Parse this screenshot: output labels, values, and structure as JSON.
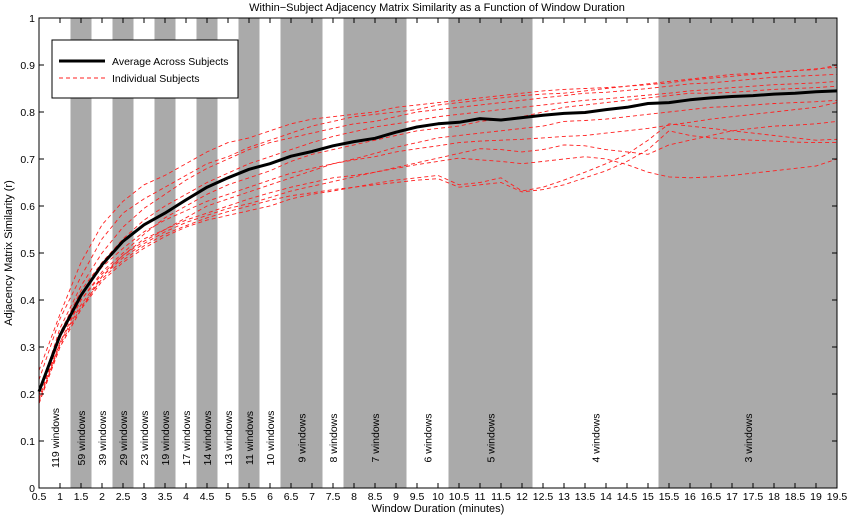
{
  "chart_data": {
    "type": "line",
    "title": "Within−Subject Adjacency Matrix Similarity as a Function of Window Duration",
    "xlabel": "Window Duration (minutes)",
    "ylabel": "Adjacency Matrix Similarity (r)",
    "xlim": [
      0.5,
      19.5
    ],
    "ylim": [
      0,
      1
    ],
    "x_ticks": [
      "0.5",
      "1",
      "1.5",
      "2",
      "2.5",
      "3",
      "3.5",
      "4",
      "4.5",
      "5",
      "5.5",
      "6",
      "6.5",
      "7",
      "7.5",
      "8",
      "8.5",
      "9",
      "9.5",
      "10",
      "10.5",
      "11",
      "11.5",
      "12",
      "12.5",
      "13",
      "13.5",
      "14",
      "14.5",
      "15",
      "15.5",
      "16",
      "16.5",
      "17",
      "17.5",
      "18",
      "18.5",
      "19",
      "19.5"
    ],
    "y_ticks": [
      "0",
      "0.1",
      "0.2",
      "0.3",
      "0.4",
      "0.5",
      "0.6",
      "0.7",
      "0.8",
      "0.9",
      "1"
    ],
    "grid": false,
    "legend_position": "top-left",
    "legend": [
      {
        "label": "Average Across Subjects",
        "style": "solid",
        "color": "#000000"
      },
      {
        "label": "Individual Subjects",
        "style": "dashed",
        "color": "#ff2020"
      }
    ],
    "bands": [
      {
        "label": "119 windows",
        "x0": 0.5,
        "x1": 1.25,
        "shaded": false
      },
      {
        "label": "59 windows",
        "x0": 1.25,
        "x1": 1.75,
        "shaded": true
      },
      {
        "label": "39 windows",
        "x0": 1.75,
        "x1": 2.25,
        "shaded": false
      },
      {
        "label": "29 windows",
        "x0": 2.25,
        "x1": 2.75,
        "shaded": true
      },
      {
        "label": "23 windows",
        "x0": 2.75,
        "x1": 3.25,
        "shaded": false
      },
      {
        "label": "19 windows",
        "x0": 3.25,
        "x1": 3.75,
        "shaded": true
      },
      {
        "label": "17 windows",
        "x0": 3.75,
        "x1": 4.25,
        "shaded": false
      },
      {
        "label": "14 windows",
        "x0": 4.25,
        "x1": 4.75,
        "shaded": true
      },
      {
        "label": "13 windows",
        "x0": 4.75,
        "x1": 5.25,
        "shaded": false
      },
      {
        "label": "11 windows",
        "x0": 5.25,
        "x1": 5.75,
        "shaded": true
      },
      {
        "label": "10 windows",
        "x0": 5.75,
        "x1": 6.25,
        "shaded": false
      },
      {
        "label": "9 windows",
        "x0": 6.25,
        "x1": 7.25,
        "shaded": true
      },
      {
        "label": "8 windows",
        "x0": 7.25,
        "x1": 7.75,
        "shaded": false
      },
      {
        "label": "7 windows",
        "x0": 7.75,
        "x1": 9.25,
        "shaded": true
      },
      {
        "label": "6 windows",
        "x0": 9.25,
        "x1": 10.25,
        "shaded": false
      },
      {
        "label": "5 windows",
        "x0": 10.25,
        "x1": 12.25,
        "shaded": true
      },
      {
        "label": "4 windows",
        "x0": 12.25,
        "x1": 15.25,
        "shaded": false
      },
      {
        "label": "3 windows",
        "x0": 15.25,
        "x1": 19.5,
        "shaded": true
      }
    ],
    "average": {
      "name": "Average Across Subjects",
      "x": [
        0.5,
        1,
        1.5,
        2,
        2.5,
        3,
        3.5,
        4,
        4.5,
        5,
        5.5,
        6,
        6.5,
        7,
        7.5,
        8,
        8.5,
        9,
        9.5,
        10,
        10.5,
        11,
        11.5,
        12,
        12.5,
        13,
        13.5,
        14,
        14.5,
        15,
        15.5,
        16,
        16.5,
        17,
        17.5,
        18,
        18.5,
        19,
        19.5
      ],
      "y": [
        0.205,
        0.325,
        0.41,
        0.475,
        0.525,
        0.56,
        0.585,
        0.613,
        0.64,
        0.66,
        0.678,
        0.69,
        0.706,
        0.716,
        0.728,
        0.737,
        0.744,
        0.757,
        0.768,
        0.775,
        0.778,
        0.786,
        0.783,
        0.788,
        0.793,
        0.797,
        0.799,
        0.805,
        0.81,
        0.818,
        0.82,
        0.826,
        0.83,
        0.833,
        0.835,
        0.838,
        0.84,
        0.843,
        0.845
      ]
    },
    "individual": [
      {
        "y": [
          0.25,
          0.37,
          0.48,
          0.56,
          0.61,
          0.645,
          0.665,
          0.69,
          0.715,
          0.735,
          0.745,
          0.76,
          0.775,
          0.785,
          0.79,
          0.795,
          0.8,
          0.81,
          0.815,
          0.82,
          0.825,
          0.83,
          0.835,
          0.84,
          0.845,
          0.848,
          0.85,
          0.852,
          0.855,
          0.86,
          0.865,
          0.87,
          0.875,
          0.88,
          0.882,
          0.885,
          0.888,
          0.89,
          0.9
        ]
      },
      {
        "y": [
          0.23,
          0.36,
          0.45,
          0.53,
          0.585,
          0.615,
          0.64,
          0.665,
          0.69,
          0.705,
          0.725,
          0.74,
          0.755,
          0.77,
          0.78,
          0.79,
          0.795,
          0.8,
          0.805,
          0.815,
          0.82,
          0.825,
          0.83,
          0.835,
          0.838,
          0.84,
          0.845,
          0.85,
          0.855,
          0.858,
          0.862,
          0.868,
          0.872,
          0.876,
          0.88,
          0.884,
          0.888,
          0.892,
          0.895
        ]
      },
      {
        "y": [
          0.2,
          0.34,
          0.43,
          0.5,
          0.555,
          0.595,
          0.625,
          0.655,
          0.68,
          0.7,
          0.72,
          0.735,
          0.745,
          0.755,
          0.765,
          0.775,
          0.78,
          0.79,
          0.8,
          0.805,
          0.81,
          0.815,
          0.82,
          0.825,
          0.83,
          0.835,
          0.84,
          0.842,
          0.846,
          0.85,
          0.855,
          0.86,
          0.862,
          0.866,
          0.87,
          0.874,
          0.876,
          0.878,
          0.88
        ]
      },
      {
        "y": [
          0.21,
          0.33,
          0.42,
          0.48,
          0.53,
          0.57,
          0.6,
          0.625,
          0.65,
          0.67,
          0.69,
          0.705,
          0.72,
          0.735,
          0.748,
          0.758,
          0.768,
          0.775,
          0.782,
          0.79,
          0.795,
          0.8,
          0.805,
          0.81,
          0.815,
          0.82,
          0.825,
          0.828,
          0.832,
          0.836,
          0.84,
          0.845,
          0.848,
          0.852,
          0.855,
          0.858,
          0.86,
          0.862,
          0.865
        ]
      },
      {
        "y": [
          0.19,
          0.31,
          0.4,
          0.46,
          0.5,
          0.54,
          0.575,
          0.6,
          0.625,
          0.645,
          0.66,
          0.675,
          0.695,
          0.71,
          0.72,
          0.73,
          0.74,
          0.75,
          0.76,
          0.765,
          0.77,
          0.78,
          0.785,
          0.79,
          0.8,
          0.81,
          0.815,
          0.82,
          0.825,
          0.83,
          0.835,
          0.84,
          0.84,
          0.842,
          0.845,
          0.848,
          0.85,
          0.852,
          0.855
        ]
      },
      {
        "y": [
          0.18,
          0.3,
          0.38,
          0.45,
          0.495,
          0.525,
          0.55,
          0.575,
          0.6,
          0.615,
          0.63,
          0.645,
          0.66,
          0.675,
          0.69,
          0.7,
          0.712,
          0.725,
          0.735,
          0.745,
          0.75,
          0.755,
          0.76,
          0.765,
          0.77,
          0.78,
          0.782,
          0.785,
          0.79,
          0.795,
          0.8,
          0.805,
          0.81,
          0.812,
          0.815,
          0.818,
          0.82,
          0.822,
          0.825
        ]
      },
      {
        "y": [
          0.2,
          0.32,
          0.41,
          0.47,
          0.51,
          0.545,
          0.57,
          0.59,
          0.61,
          0.625,
          0.64,
          0.655,
          0.67,
          0.68,
          0.69,
          0.698,
          0.705,
          0.715,
          0.722,
          0.728,
          0.735,
          0.738,
          0.74,
          0.742,
          0.745,
          0.748,
          0.75,
          0.755,
          0.76,
          0.765,
          0.772,
          0.778,
          0.785,
          0.79,
          0.795,
          0.8,
          0.805,
          0.81,
          0.82
        ]
      },
      {
        "y": [
          0.18,
          0.31,
          0.39,
          0.45,
          0.49,
          0.52,
          0.545,
          0.565,
          0.58,
          0.595,
          0.605,
          0.618,
          0.632,
          0.642,
          0.652,
          0.662,
          0.672,
          0.682,
          0.692,
          0.702,
          0.712,
          0.722,
          0.72,
          0.715,
          0.72,
          0.73,
          0.728,
          0.72,
          0.715,
          0.71,
          0.73,
          0.74,
          0.75,
          0.76,
          0.765,
          0.77,
          0.772,
          0.775,
          0.78
        ]
      },
      {
        "y": [
          0.19,
          0.32,
          0.4,
          0.455,
          0.495,
          0.53,
          0.55,
          0.57,
          0.585,
          0.6,
          0.615,
          0.628,
          0.64,
          0.65,
          0.66,
          0.665,
          0.672,
          0.68,
          0.688,
          0.695,
          0.702,
          0.698,
          0.695,
          0.69,
          0.695,
          0.7,
          0.705,
          0.7,
          0.688,
          0.672,
          0.662,
          0.66,
          0.662,
          0.665,
          0.67,
          0.675,
          0.68,
          0.685,
          0.7
        ]
      },
      {
        "y": [
          0.18,
          0.3,
          0.38,
          0.44,
          0.48,
          0.51,
          0.535,
          0.555,
          0.57,
          0.58,
          0.59,
          0.6,
          0.615,
          0.625,
          0.632,
          0.64,
          0.648,
          0.655,
          0.66,
          0.665,
          0.645,
          0.65,
          0.66,
          0.632,
          0.64,
          0.655,
          0.672,
          0.69,
          0.71,
          0.74,
          0.775,
          0.77,
          0.765,
          0.76,
          0.755,
          0.75,
          0.745,
          0.74,
          0.742
        ]
      },
      {
        "y": [
          0.185,
          0.305,
          0.385,
          0.445,
          0.485,
          0.515,
          0.54,
          0.558,
          0.575,
          0.588,
          0.6,
          0.612,
          0.622,
          0.628,
          0.635,
          0.64,
          0.645,
          0.65,
          0.655,
          0.658,
          0.64,
          0.645,
          0.65,
          0.63,
          0.635,
          0.645,
          0.66,
          0.675,
          0.695,
          0.72,
          0.76,
          0.75,
          0.745,
          0.742,
          0.74,
          0.738,
          0.736,
          0.735,
          0.735
        ]
      }
    ]
  }
}
